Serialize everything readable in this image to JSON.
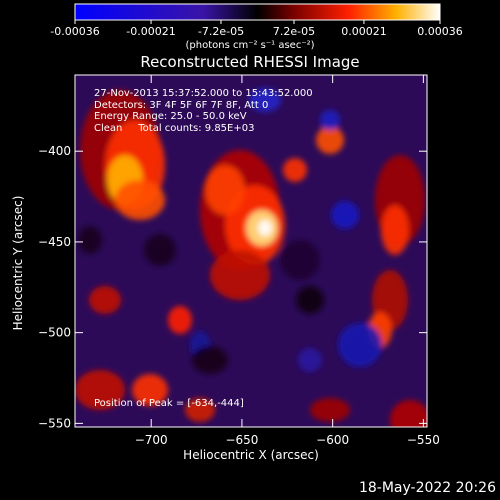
{
  "colorbar": {
    "ticks": [
      "-0.00036",
      "-0.00021",
      "-7.2e-05",
      "7.2e-05",
      "0.00021",
      "0.00036"
    ],
    "tick_values": [
      -0.00036,
      -0.00021,
      -7.2e-05,
      7.2e-05,
      0.00021,
      0.00036
    ],
    "range": [
      -0.00036,
      0.00036
    ],
    "units": "(photons cm⁻² s⁻¹ asec⁻²)"
  },
  "chart_data": {
    "type": "heatmap",
    "title": "Reconstructed RHESSI Image",
    "xlabel": "Heliocentric X (arcsec)",
    "ylabel": "Heliocentric Y (arcsec)",
    "xlim": [
      -742,
      -548
    ],
    "ylim": [
      -552,
      -358
    ],
    "xticks": [
      -700,
      -650,
      -600,
      -550
    ],
    "xtick_labels": [
      "−700",
      "−650",
      "−600",
      "−550"
    ],
    "yticks": [
      -400,
      -450,
      -500,
      -550
    ],
    "ytick_labels": [
      "−400",
      "−450",
      "−500",
      "−550"
    ],
    "peak": [
      -634,
      -444
    ],
    "info_lines": [
      "27-Nov-2013 15:37:52.000 to 15:43:52.000",
      "Detectors: 3F 4F 5F 6F 7F 8F, Att 0",
      "Energy Range: 25.0 - 50.0 keV",
      "Clean     Total counts: 9.85E+03"
    ],
    "peak_label": "Position of Peak = [-634,-444]",
    "colors": {
      "neg_max": "#0000ff",
      "zero": "#000000",
      "pos_max": "#ffffff",
      "mid": "#ff2000"
    }
  },
  "footer": {
    "timestamp": "18-May-2022 20:26"
  }
}
